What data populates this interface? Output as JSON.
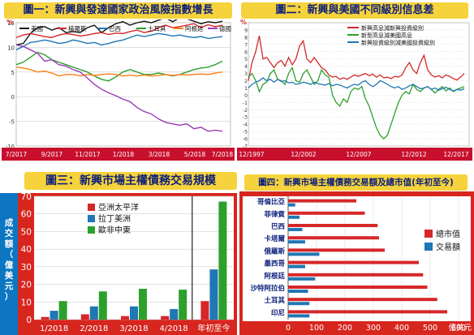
{
  "chart_data": [
    {
      "type": "line",
      "title": "圖一：新興與發達國家政治風險指數增長",
      "ylabel_unit": "%",
      "ylim": [
        -10,
        15
      ],
      "yticks": [
        "15",
        "10",
        "5",
        "0",
        "-5",
        "-10"
      ],
      "xticks": [
        "7/2017",
        "9/2017",
        "11/2017",
        "1/2018",
        "3/2018",
        "5/2018",
        "7/2018"
      ],
      "series": [
        {
          "name": "美國",
          "color": "#111111",
          "values": [
            10.5,
            10.8,
            12.8,
            14,
            14.2,
            13.5,
            14,
            13,
            13.2,
            13,
            14,
            14.5,
            13,
            14,
            14.8,
            15.2,
            14.5,
            15,
            15.3,
            15,
            15.5,
            16,
            15.2,
            16,
            15.8,
            15.3,
            14.8,
            15.2,
            15,
            15.3
          ]
        },
        {
          "name": "橫羅斯",
          "color": "#d62728",
          "values": [
            12,
            12.5,
            12.8,
            12.5,
            12.2,
            12,
            12.5,
            12.8,
            12.6,
            12.3,
            12.5,
            12.8,
            13,
            12.6,
            12.9,
            12.8,
            13.2,
            13.5,
            13,
            13.3,
            14,
            14.5,
            14,
            14.2,
            14.5,
            14.8,
            14,
            14.6,
            14.2,
            14.5
          ]
        },
        {
          "name": "巴西",
          "color": "#1f77b4",
          "values": [
            9.5,
            10.2,
            11,
            11.2,
            11.5,
            11.2,
            10.8,
            11,
            11.5,
            11.2,
            10.8,
            11,
            10.5,
            10.8,
            11.2,
            11.5,
            12,
            12.5,
            12.2,
            12.5,
            12.8,
            12.6,
            12.3,
            12.5,
            12.2,
            12,
            12.2,
            11.8,
            12,
            12.2
          ]
        },
        {
          "name": "土耳其",
          "color": "#2ca02c",
          "values": [
            6.5,
            7,
            8,
            9,
            8.5,
            7.5,
            7,
            6.5,
            6,
            5.5,
            5,
            4.2,
            3.5,
            3.2,
            4,
            5,
            5.5,
            5,
            4.5,
            4.5,
            4.8,
            4.5,
            4.2,
            4.5,
            5,
            5.5,
            5.8,
            6,
            6.5,
            7.2
          ]
        },
        {
          "name": "阿根廷",
          "color": "#ff7f0e",
          "values": [
            6,
            5.8,
            5.5,
            5,
            5.2,
            4.8,
            4.2,
            4.5,
            4.5,
            4.2,
            4.5,
            4.3,
            4.5,
            4.6,
            4.5,
            4.2,
            4.4,
            4.2,
            4.4,
            4.2,
            4.3,
            4.5,
            4.3,
            4.5,
            4.4,
            4.5,
            4.6,
            4.5,
            4.8,
            5
          ]
        },
        {
          "name": "德國",
          "color": "#9b3bb5",
          "values": [
            10.5,
            10.2,
            9.5,
            8.8,
            7.2,
            7.5,
            6.5,
            6.2,
            5.5,
            5,
            3.8,
            2.5,
            1.5,
            0.8,
            0.2,
            -0.5,
            -1,
            -2.2,
            -3,
            -3.5,
            -4.5,
            -5.2,
            -5.5,
            -5.8,
            -5.5,
            -6.5,
            -6.2,
            -7,
            -6.8,
            -7
          ]
        }
      ]
    },
    {
      "type": "line",
      "title": "圖二：新興與美國不同級別信息差",
      "ylabel_unit": "%",
      "ylim": [
        -7,
        10
      ],
      "yticks": [
        "9",
        "8",
        "7",
        "6",
        "5",
        "4",
        "3",
        "2",
        "1",
        "0",
        "-1",
        "-2",
        "-3",
        "-4",
        "-5",
        "-6",
        "-7"
      ],
      "xticks": [
        "12/1997",
        "12/2002",
        "12/2007",
        "12/2012",
        "12/2017"
      ],
      "series": [
        {
          "name": "新興高息減新興投資級別",
          "color": "#d62728",
          "values": [
            2,
            4.5,
            6,
            8.2,
            5,
            5.2,
            4.5,
            3.8,
            4.5,
            4.8,
            4,
            5.2,
            4.2,
            5,
            6.8,
            7.5,
            5,
            4.5,
            5.2,
            4.5,
            3.8,
            3.5,
            2.8,
            2.5,
            2.6,
            2.2,
            2.4,
            2.2,
            2.5,
            2.8,
            2.6,
            2.8,
            3,
            2.7,
            2.9,
            2.5,
            2.8,
            2.4,
            2.5,
            2.3,
            2.6,
            2.5,
            2.8,
            3.8,
            4.5,
            3.5,
            3,
            4.5,
            5.5,
            3.5,
            2.8,
            2.5,
            2.7,
            2.4,
            2.8,
            2.6,
            2.3,
            2.1,
            2.5,
            3
          ]
        },
        {
          "name": "新型高息減美國高息",
          "color": "#2ca02c",
          "values": [
            2.5,
            3,
            2,
            0.5,
            1.5,
            1.8,
            3,
            3.5,
            2.2,
            2,
            1.5,
            3,
            3.8,
            2,
            1.8,
            3,
            3.5,
            2.5,
            1.5,
            2,
            3.5,
            2.8,
            2.5,
            0,
            -1,
            -1.5,
            -0.5,
            -1,
            0.5,
            1,
            0.8,
            1.2,
            -0.5,
            -1.5,
            -3,
            -4.5,
            -5.5,
            -6,
            -5.5,
            -4,
            -2.5,
            -1,
            0,
            0.5,
            0.2,
            1.5,
            0.8,
            0.5,
            1,
            1.2,
            0.8,
            0.3,
            0.8,
            1.2,
            0.6,
            1,
            0.5,
            0.8,
            1,
            1.2
          ]
        },
        {
          "name": "新興投資級別減美國投資級別",
          "color": "#1f77b4",
          "values": [
            1,
            1.5,
            1.8,
            2,
            2.4,
            2,
            2.2,
            1.8,
            2.2,
            1.9,
            2,
            1.7,
            1.8,
            1.5,
            1.6,
            1.8,
            1.7,
            1.5,
            1.8,
            1.6,
            1.5,
            1.4,
            1.6,
            1.3,
            1.5,
            1.4,
            1.2,
            1,
            1.3,
            1.5,
            1.4,
            1.8,
            2,
            1.5,
            1.2,
            1.5,
            2,
            1.8,
            1.5,
            1.2,
            1,
            1.2,
            0.8,
            1,
            1.3,
            1.5,
            1.2,
            0.9,
            1,
            1.2,
            0.8,
            1,
            0.7,
            0.9,
            1.1,
            0.8,
            0.6,
            0.8,
            0.7,
            0.9
          ]
        }
      ]
    },
    {
      "type": "bar",
      "title": "圖三：新興市場主權債務交易規模",
      "ylabel": "成交額（億美元）",
      "ylim": [
        0,
        70
      ],
      "yticks": [
        "0",
        "10",
        "20",
        "30",
        "40",
        "50",
        "60",
        "70"
      ],
      "categories": [
        "1/2018",
        "2/2018",
        "3/2018",
        "4/2018",
        "年初至今"
      ],
      "series": [
        {
          "name": "亞洲太平洋",
          "color": "#d62728",
          "values": [
            1.5,
            3,
            2,
            2,
            10.5
          ]
        },
        {
          "name": "拉丁美洲",
          "color": "#1f77b4",
          "values": [
            5,
            7.5,
            7.5,
            6,
            28.5
          ]
        },
        {
          "name": "歐非中東",
          "color": "#2ca02c",
          "values": [
            10.5,
            16,
            17.5,
            17,
            67
          ]
        }
      ]
    },
    {
      "type": "bar",
      "orientation": "horizontal",
      "title": "圖四：新興市場主權債務交易額及總市值(年初至今)",
      "xlabel": "億美元",
      "xlim": [
        0,
        600
      ],
      "xticks": [
        "0",
        "100",
        "200",
        "300",
        "400",
        "500",
        "600"
      ],
      "categories": [
        "哥倫比亞",
        "菲律賓",
        "巴西",
        "卡塔爾",
        "俄羅斯",
        "墨西哥",
        "阿根廷",
        "沙特阿拉伯",
        "土耳其",
        "印尼"
      ],
      "series": [
        {
          "name": "總市值",
          "color": "#d62728",
          "values": [
            240,
            270,
            315,
            320,
            340,
            460,
            475,
            490,
            525,
            560
          ]
        },
        {
          "name": "交易額",
          "color": "#1f77b4",
          "values": [
            25,
            40,
            50,
            60,
            110,
            60,
            95,
            70,
            75,
            75
          ]
        }
      ]
    }
  ]
}
